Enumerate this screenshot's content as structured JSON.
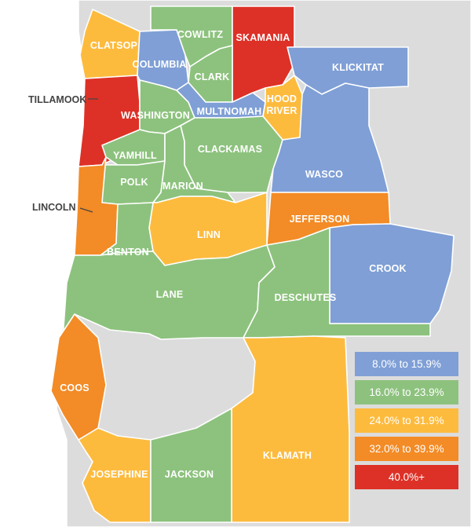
{
  "colors": {
    "c8": "#7f9fd6",
    "c16": "#8dc27e",
    "c24": "#fdbb3e",
    "c32": "#f38b26",
    "c40": "#dd3127",
    "background": "#dcdcdc"
  },
  "counties": [
    {
      "name": "CLATSOP",
      "range": "24.0% to 31.9%"
    },
    {
      "name": "COLUMBIA",
      "range": "8.0% to 15.9%"
    },
    {
      "name": "COWLITZ",
      "range": "16.0% to 23.9%"
    },
    {
      "name": "SKAMANIA",
      "range": "40.0%+"
    },
    {
      "name": "CLARK",
      "range": "16.0% to 23.9%"
    },
    {
      "name": "KLICKITAT",
      "range": "8.0% to 15.9%"
    },
    {
      "name": "TILLAMOOK",
      "range": "40.0%+"
    },
    {
      "name": "WASHINGTON",
      "range": "16.0% to 23.9%"
    },
    {
      "name": "MULTNOMAH",
      "range": "8.0% to 15.9%"
    },
    {
      "name": "HOOD",
      "range": "24.0% to 31.9%"
    },
    {
      "name": "RIVER",
      "range": "24.0% to 31.9%"
    },
    {
      "name": "CLACKAMAS",
      "range": "16.0% to 23.9%"
    },
    {
      "name": "YAMHILL",
      "range": "16.0% to 23.9%"
    },
    {
      "name": "WASCO",
      "range": "8.0% to 15.9%"
    },
    {
      "name": "POLK",
      "range": "16.0% to 23.9%"
    },
    {
      "name": "MARION",
      "range": "16.0% to 23.9%"
    },
    {
      "name": "LINCOLN",
      "range": "32.0% to 39.9%"
    },
    {
      "name": "JEFFERSON",
      "range": "32.0% to 39.9%"
    },
    {
      "name": "LINN",
      "range": "24.0% to 31.9%"
    },
    {
      "name": "BENTON",
      "range": "16.0% to 23.9%"
    },
    {
      "name": "CROOK",
      "range": "8.0% to 15.9%"
    },
    {
      "name": "LANE",
      "range": "16.0% to 23.9%"
    },
    {
      "name": "DESCHUTES",
      "range": "16.0% to 23.9%"
    },
    {
      "name": "COOS",
      "range": "32.0% to 39.9%"
    },
    {
      "name": "KLAMATH",
      "range": "24.0% to 31.9%"
    },
    {
      "name": "JOSEPHINE",
      "range": "24.0% to 31.9%"
    },
    {
      "name": "JACKSON",
      "range": "16.0% to 23.9%"
    }
  ],
  "legend": [
    {
      "label": "8.0% to 15.9%",
      "color": "#7f9fd6"
    },
    {
      "label": "16.0% to 23.9%",
      "color": "#8dc27e"
    },
    {
      "label": "24.0% to 31.9%",
      "color": "#fdbb3e"
    },
    {
      "label": "32.0% to 39.9%",
      "color": "#f38b26"
    },
    {
      "label": "40.0%+",
      "color": "#dd3127"
    }
  ]
}
